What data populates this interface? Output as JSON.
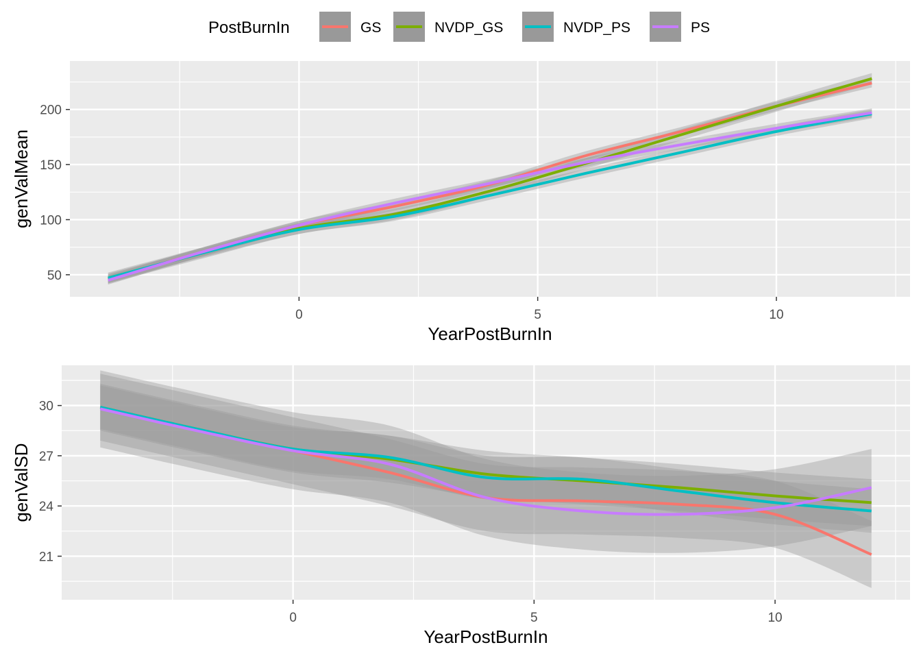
{
  "legend": {
    "title": "PostBurnIn",
    "placement": "top",
    "items": [
      {
        "label": "GS",
        "color": "#F8766D"
      },
      {
        "label": "NVDP_GS",
        "color": "#7CAE00"
      },
      {
        "label": "NVDP_PS",
        "color": "#00BFC4"
      },
      {
        "label": "PS",
        "color": "#C77CFF"
      }
    ]
  },
  "style": {
    "panel_bg": "#EBEBEB",
    "grid": "#FFFFFF",
    "ribbon": "#999999",
    "text": "#4D4D4D",
    "title_text": "#000000"
  },
  "chart_data": [
    {
      "type": "line",
      "smoothed": true,
      "confidence_band": true,
      "xlabel": "YearPostBurnIn",
      "ylabel": "genValMean",
      "xlim": [
        -4.8,
        12.8
      ],
      "ylim": [
        30,
        244
      ],
      "xticks": [
        0,
        5,
        10
      ],
      "xtick_labels": [
        "0",
        "5",
        "10"
      ],
      "yticks": [
        50,
        100,
        150,
        200
      ],
      "ytick_labels": [
        "50",
        "100",
        "150",
        "200"
      ],
      "grid": true,
      "x": [
        -4,
        -2,
        0,
        2,
        4,
        6,
        8,
        10,
        12
      ],
      "series": [
        {
          "name": "GS",
          "values": [
            46,
            71,
            95,
            112,
            132,
            158,
            180,
            203,
            224
          ],
          "band": 4
        },
        {
          "name": "NVDP_GS",
          "values": [
            47,
            70,
            92,
            105,
            126,
            151,
            177,
            203,
            228
          ],
          "band": 5
        },
        {
          "name": "NVDP_PS",
          "values": [
            47,
            70,
            91,
            103,
            122,
            142,
            161,
            180,
            196
          ],
          "band": 4
        },
        {
          "name": "PS",
          "values": [
            45,
            71,
            95,
            115,
            133,
            152,
            168,
            183,
            197
          ],
          "band": 4
        }
      ]
    },
    {
      "type": "line",
      "smoothed": true,
      "confidence_band": true,
      "xlabel": "YearPostBurnIn",
      "ylabel": "genValSD",
      "xlim": [
        -4.8,
        12.8
      ],
      "ylim": [
        18.4,
        32.4
      ],
      "xticks": [
        0,
        5,
        10
      ],
      "xtick_labels": [
        "0",
        "5",
        "10"
      ],
      "yticks": [
        21,
        24,
        27,
        30
      ],
      "ytick_labels": [
        "21",
        "24",
        "27",
        "30"
      ],
      "grid": true,
      "x": [
        -4,
        -2,
        0,
        2,
        4,
        6,
        8,
        10,
        12
      ],
      "series": [
        {
          "name": "GS",
          "values": [
            29.9,
            28.6,
            27.3,
            26.0,
            24.5,
            24.3,
            24.1,
            23.5,
            21.1
          ],
          "band": 2.0
        },
        {
          "name": "NVDP_GS",
          "values": [
            29.9,
            28.6,
            27.4,
            26.8,
            25.9,
            25.5,
            25.1,
            24.6,
            24.2
          ],
          "band": 1.4
        },
        {
          "name": "NVDP_PS",
          "values": [
            29.9,
            28.6,
            27.4,
            26.9,
            25.7,
            25.6,
            24.9,
            24.2,
            23.7
          ],
          "band": 1.3
        },
        {
          "name": "PS",
          "values": [
            29.8,
            28.5,
            27.3,
            26.5,
            24.5,
            23.7,
            23.5,
            23.9,
            25.1
          ],
          "band": 2.3
        }
      ]
    }
  ]
}
